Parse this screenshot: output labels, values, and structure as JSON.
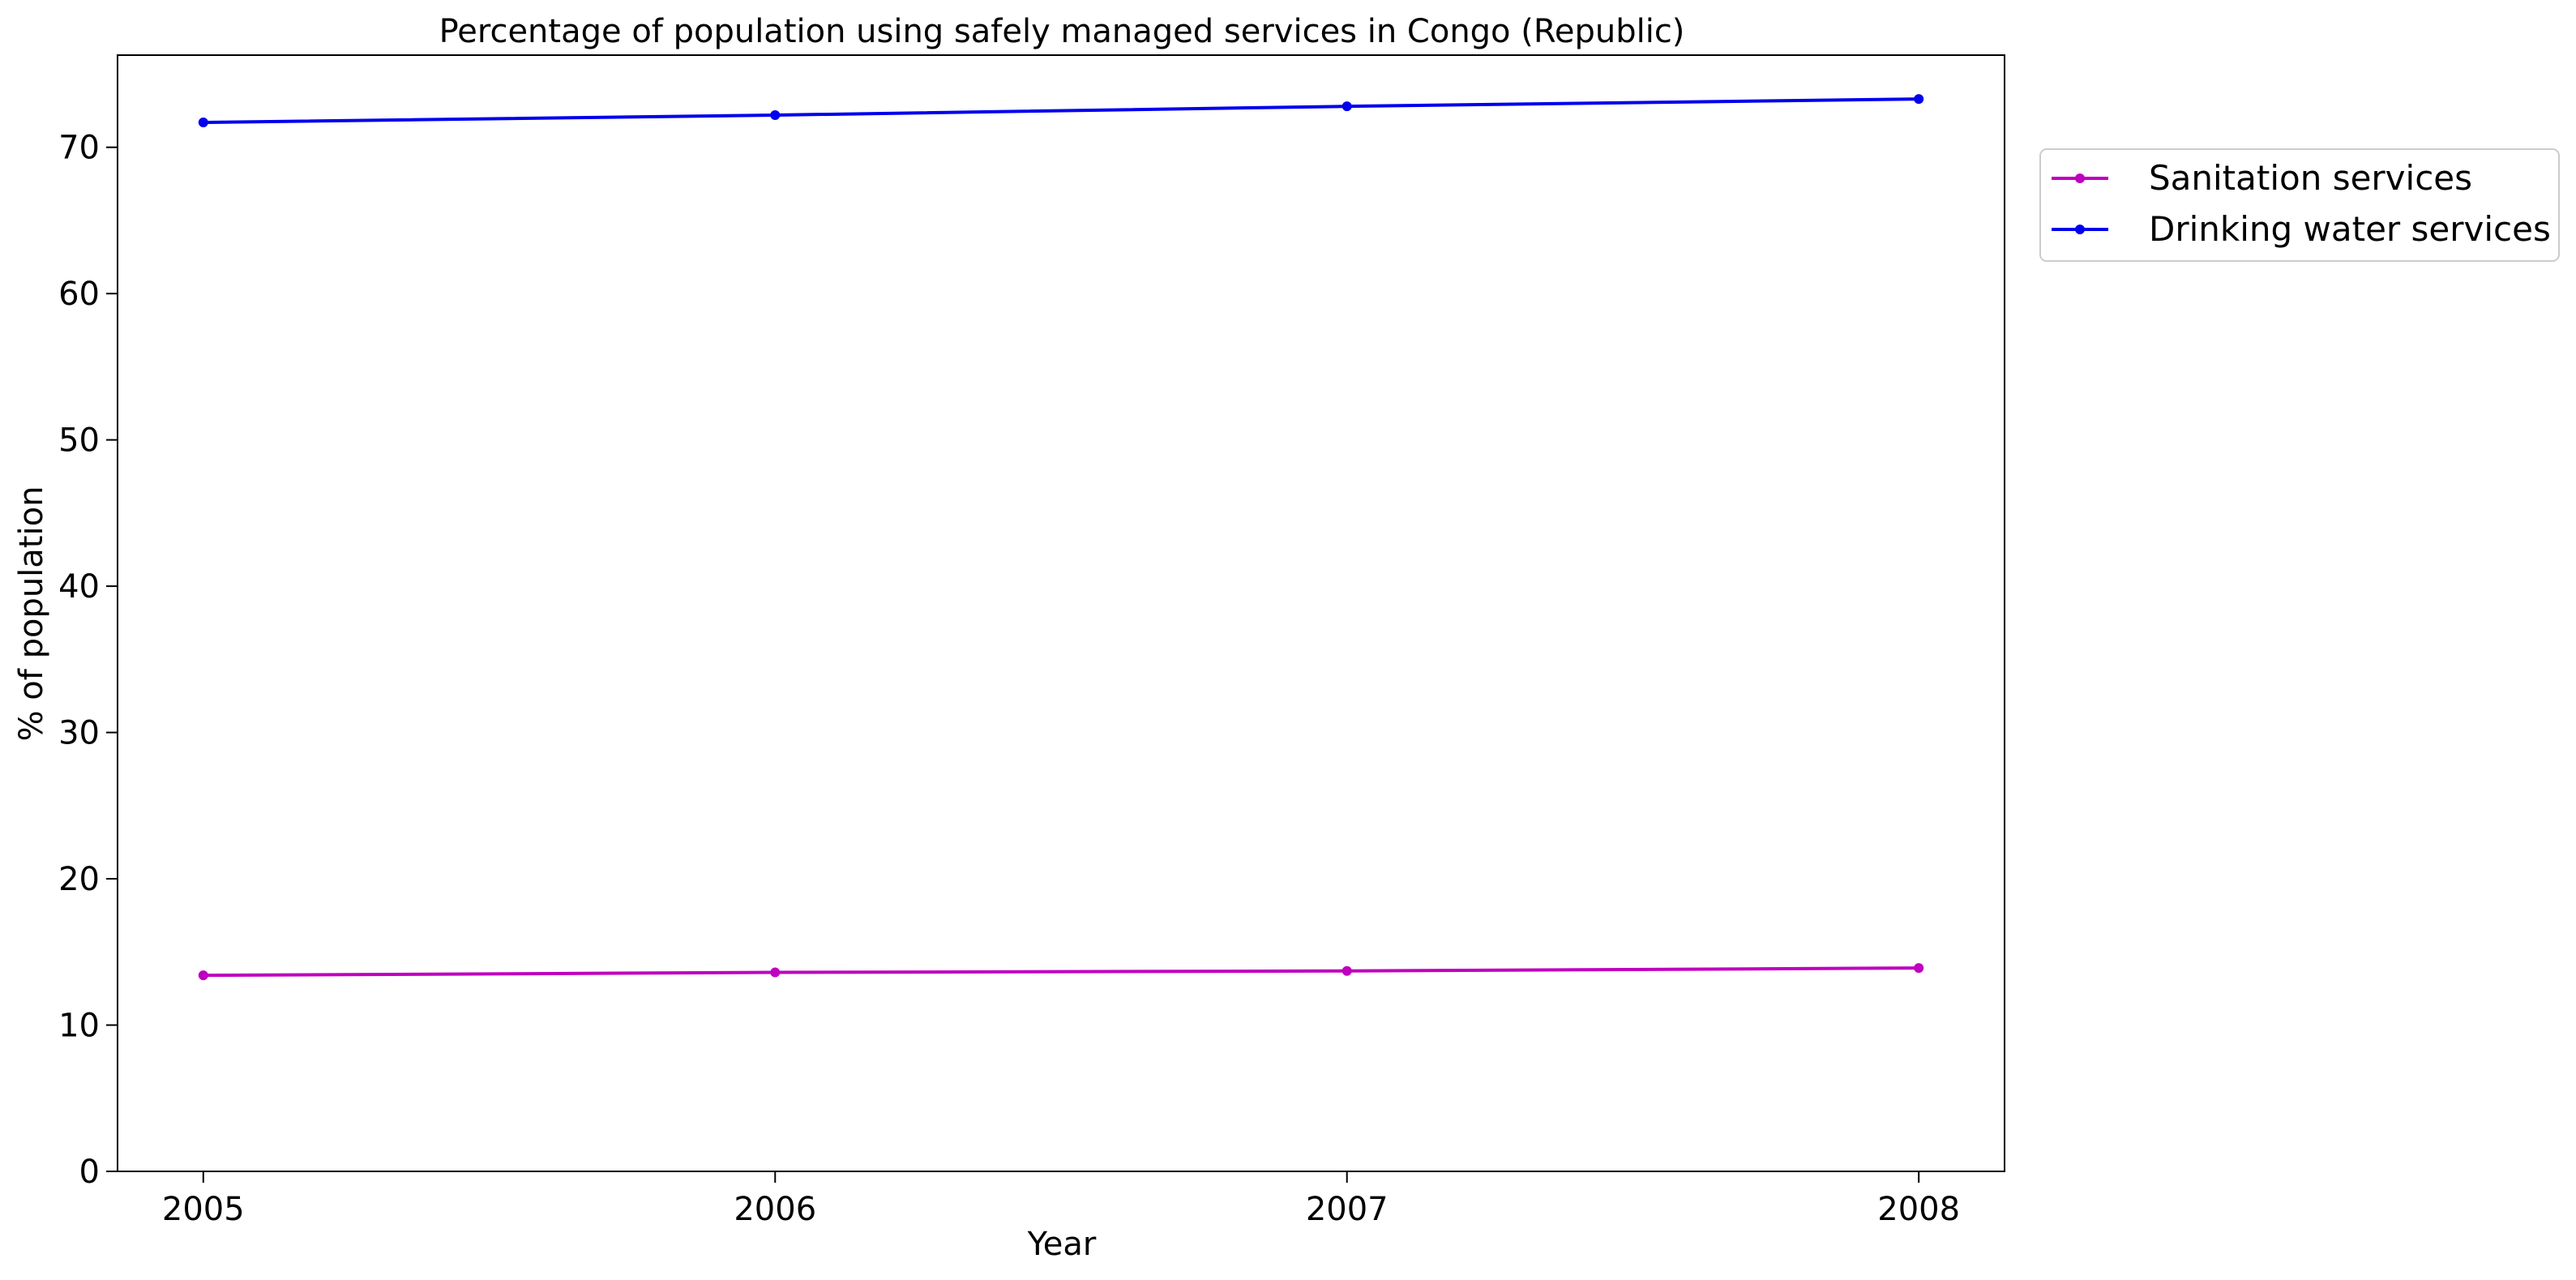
{
  "chart_data": {
    "type": "line",
    "title": "Percentage of population using safely managed services in Congo (Republic)",
    "xlabel": "Year",
    "ylabel": "% of population",
    "x": [
      2005,
      2006,
      2007,
      2008
    ],
    "x_tick_labels": [
      "2005",
      "2006",
      "2007",
      "2008"
    ],
    "y_ticks": [
      0,
      10,
      20,
      30,
      40,
      50,
      60,
      70
    ],
    "y_tick_labels": [
      "0",
      "10",
      "20",
      "30",
      "40",
      "50",
      "60",
      "70"
    ],
    "xlim": [
      2004.85,
      2008.15
    ],
    "ylim": [
      0,
      76.3
    ],
    "grid": false,
    "legend_position": "outside-top-right",
    "series": [
      {
        "name": "Sanitation services",
        "color": "#bf00bf",
        "values": [
          13.4,
          13.6,
          13.7,
          13.9
        ]
      },
      {
        "name": "Drinking water services",
        "color": "#0000ee",
        "values": [
          71.7,
          72.2,
          72.8,
          73.3
        ]
      }
    ]
  }
}
